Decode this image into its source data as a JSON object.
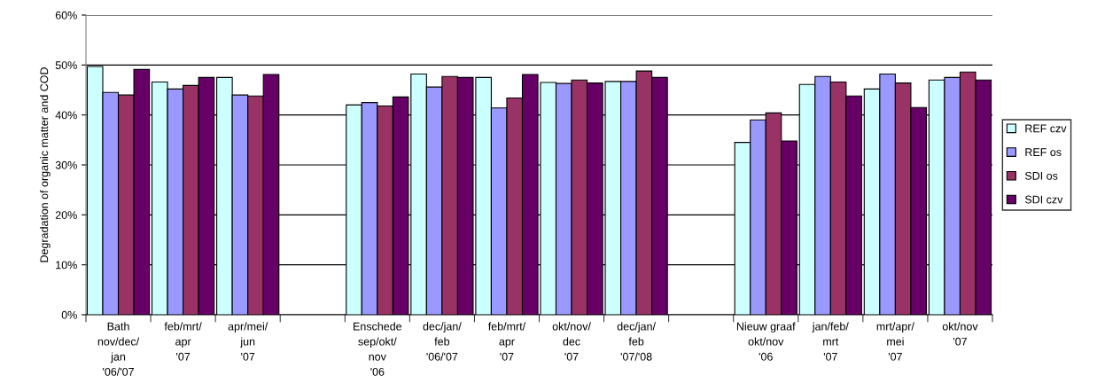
{
  "chart_data": {
    "type": "bar",
    "ylabel": "Degradation of organic matter and COD",
    "categories": [
      "Bath\nnov/dec/\njan\n'06/'07",
      "feb/mrt/\napr\n'07",
      "apr/mei/\njun\n'07",
      null,
      "Enschede\nsep/okt/\nnov\n'06",
      "dec/jan/\nfeb\n'06/'07",
      "feb/mrt/\napr\n'07",
      "okt/nov/\ndec\n'07",
      "dec/jan/\nfeb\n'07/'08",
      null,
      "Nieuw graaf\nokt/nov\n'06",
      "jan/feb/\nmrt\n'07",
      "mrt/apr/\nmei\n'07",
      "okt/nov\n'07"
    ],
    "series": [
      {
        "name": "REF czv",
        "color": "#ccffff",
        "values": [
          49.7,
          46.6,
          47.5,
          null,
          42.0,
          48.2,
          47.5,
          46.5,
          46.7,
          null,
          34.5,
          46.1,
          45.2,
          47.0
        ]
      },
      {
        "name": "REF os",
        "color": "#9999ff",
        "values": [
          44.5,
          45.2,
          44.0,
          null,
          42.5,
          45.6,
          41.4,
          46.3,
          46.7,
          null,
          39.0,
          47.7,
          48.2,
          47.5
        ]
      },
      {
        "name": "SDI os",
        "color": "#993366",
        "values": [
          44.0,
          45.9,
          43.8,
          null,
          41.8,
          47.7,
          43.4,
          47.0,
          48.8,
          null,
          40.4,
          46.6,
          46.4,
          48.6
        ]
      },
      {
        "name": "SDI czv",
        "color": "#660066",
        "values": [
          49.1,
          47.5,
          48.1,
          null,
          43.6,
          47.5,
          48.1,
          46.4,
          47.5,
          null,
          34.8,
          43.8,
          41.5,
          47.0
        ]
      }
    ],
    "ylim": [
      0,
      60
    ],
    "yticks": [
      {
        "value": 0,
        "label": "0%"
      },
      {
        "value": 10,
        "label": "10%"
      },
      {
        "value": 20,
        "label": "20%"
      },
      {
        "value": 30,
        "label": "30%"
      },
      {
        "value": 40,
        "label": "40%"
      },
      {
        "value": 50,
        "label": "50%"
      },
      {
        "value": 60,
        "label": "60%"
      }
    ],
    "grid": "y",
    "legend": "right"
  }
}
